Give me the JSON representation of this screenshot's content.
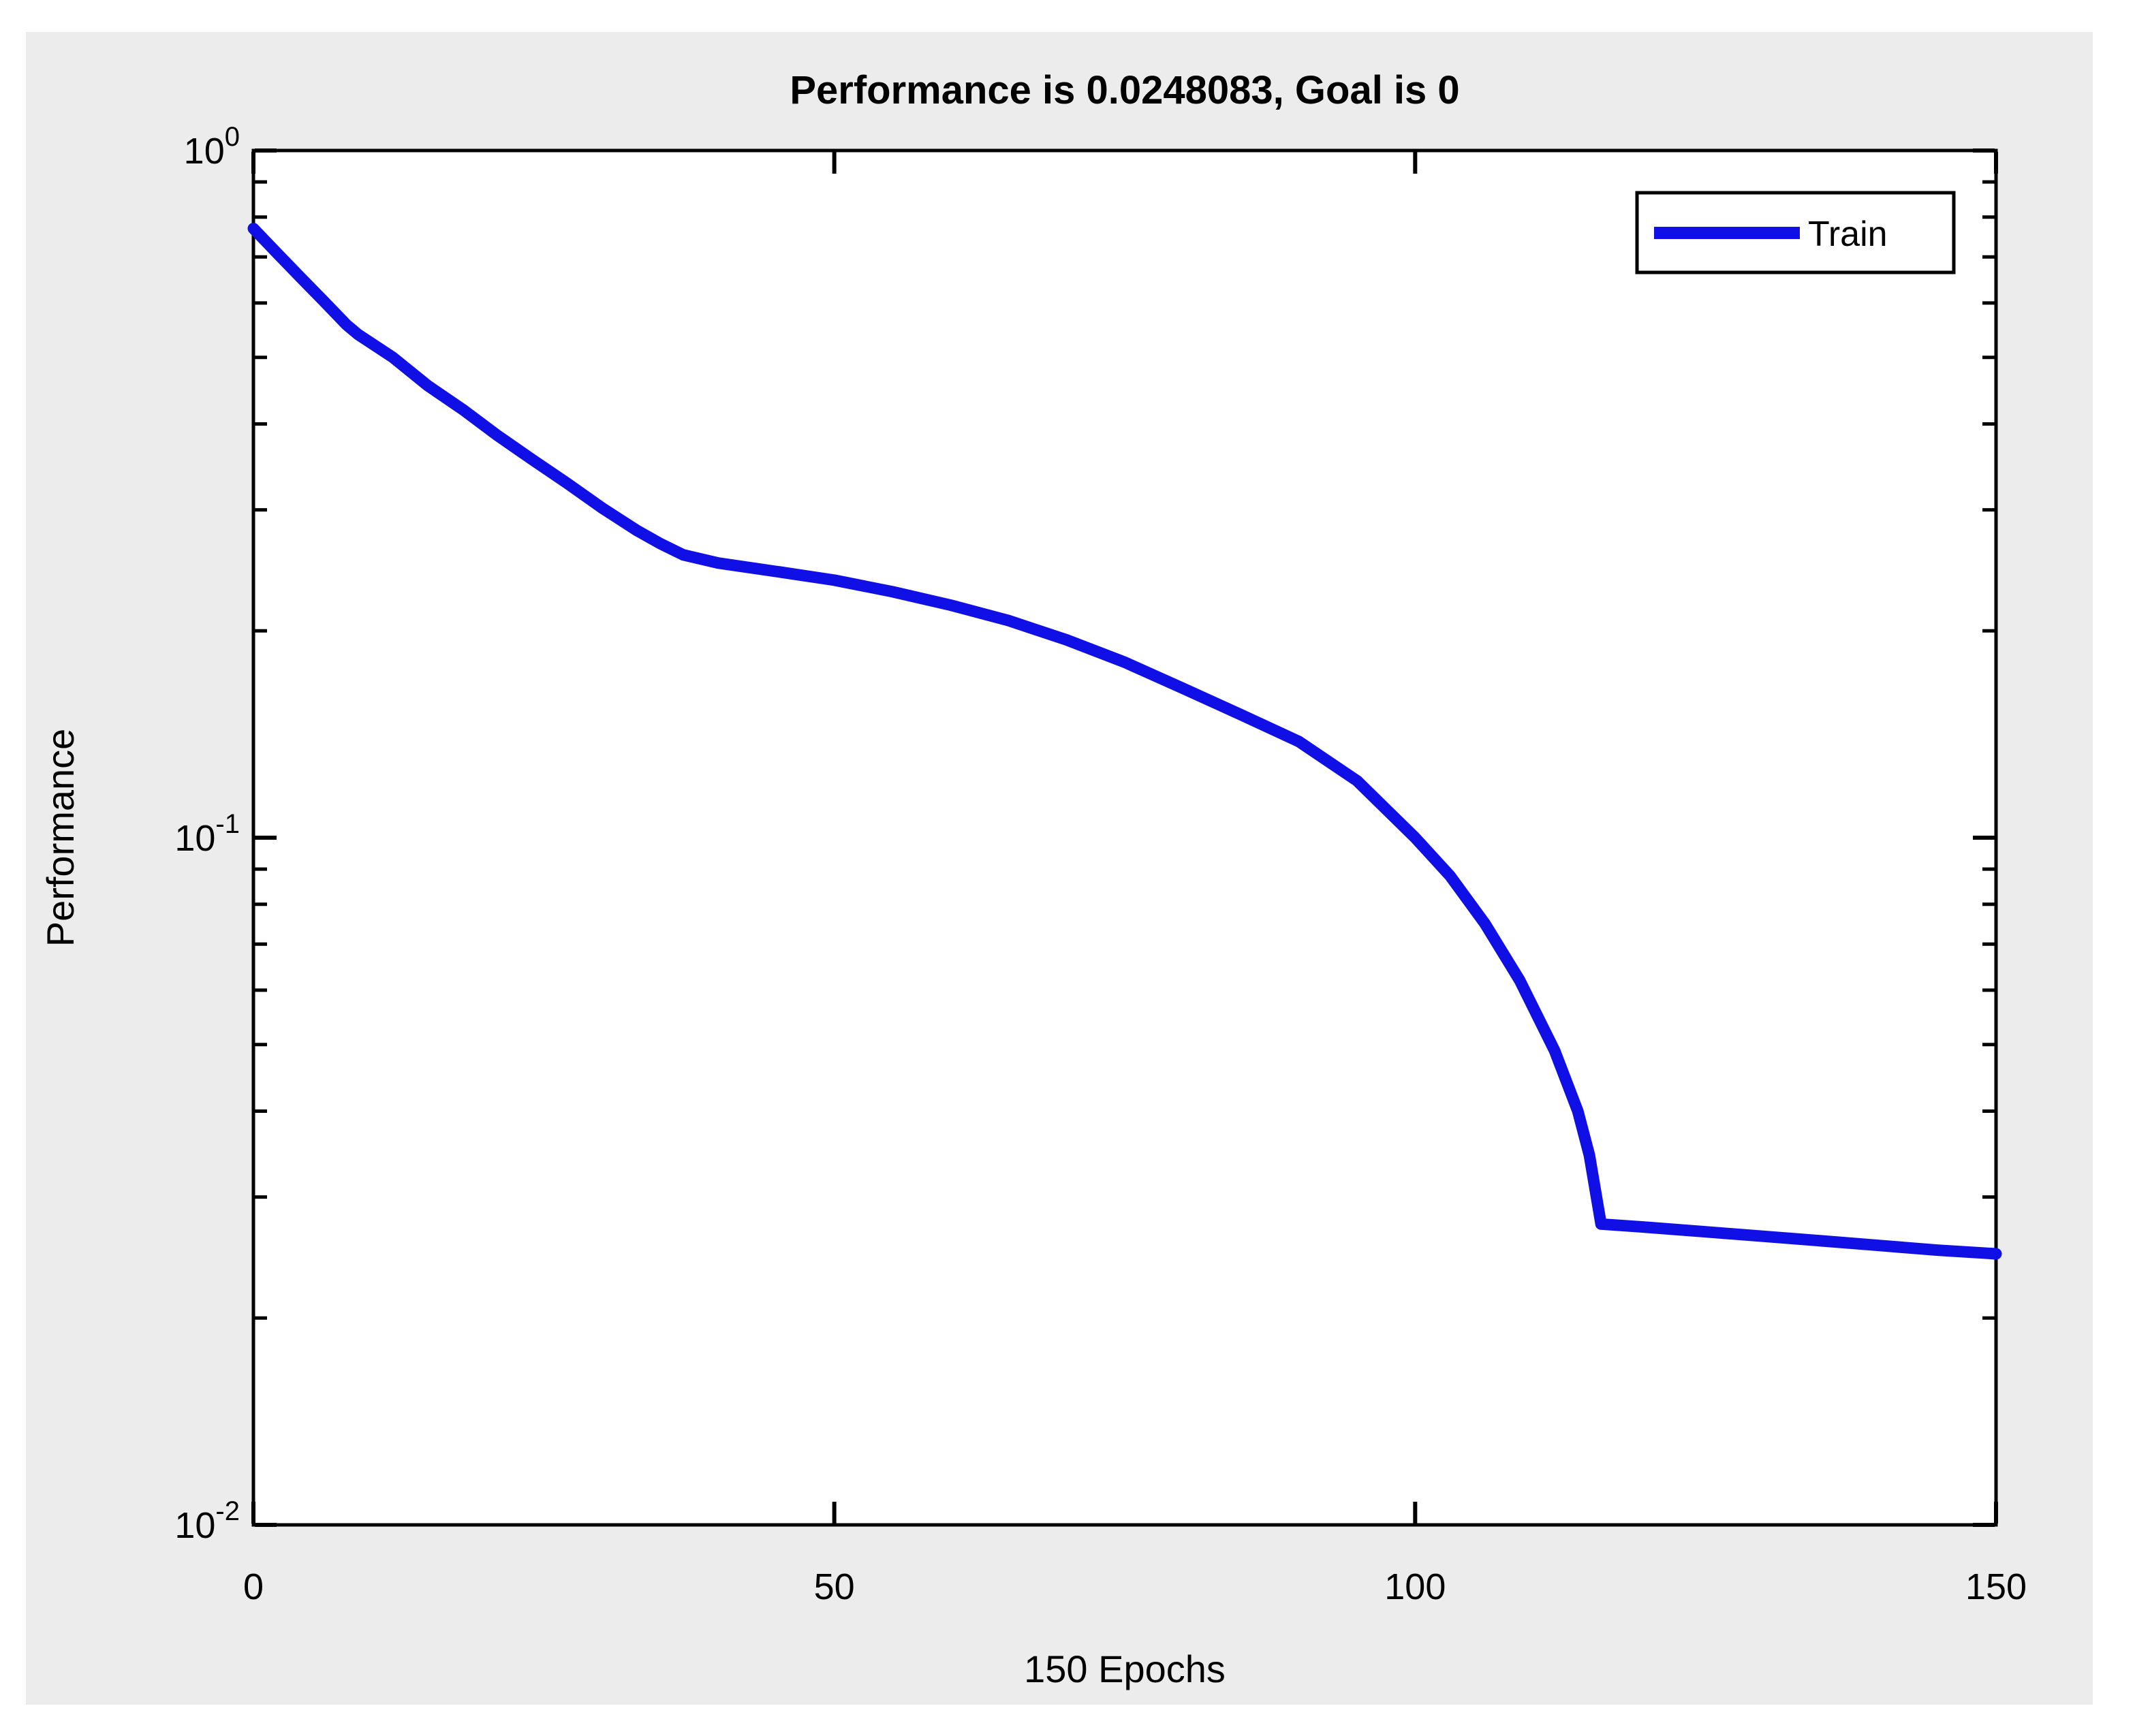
{
  "title": "Performance is 0.0248083, Goal is 0",
  "axes": {
    "xlabel": "150 Epochs",
    "ylabel": "Performance",
    "x_ticks": [
      {
        "value": 0,
        "label": "0"
      },
      {
        "value": 50,
        "label": "50"
      },
      {
        "value": 100,
        "label": "100"
      },
      {
        "value": 150,
        "label": "150"
      }
    ],
    "y_ticks": [
      {
        "value": 1,
        "base": "10",
        "exponent": "0"
      },
      {
        "value": 0.1,
        "base": "10",
        "exponent": "-1"
      },
      {
        "value": 0.01,
        "base": "10",
        "exponent": "-2"
      }
    ]
  },
  "legend": {
    "entries": [
      {
        "label": "Train",
        "color": "#0F0FE6"
      }
    ]
  },
  "colors": {
    "line": "#0F0FE6",
    "figure_background": "#ECECEC",
    "plot_background": "#FFFFFF",
    "axis": "#000000"
  },
  "chart_data": {
    "type": "line",
    "title": "Performance is 0.0248083, Goal is 0",
    "xlabel": "150 Epochs",
    "ylabel": "Performance",
    "xlim": [
      0,
      150
    ],
    "ylim": [
      0.01,
      1
    ],
    "yscale": "log",
    "grid": false,
    "legend_position": "upper right",
    "final_performance": 0.0248083,
    "goal": 0,
    "series": [
      {
        "name": "Train",
        "color": "#0F0FE6",
        "points": [
          [
            0,
            0.77
          ],
          [
            2,
            0.71
          ],
          [
            4,
            0.655
          ],
          [
            6,
            0.605
          ],
          [
            8,
            0.558
          ],
          [
            9,
            0.54
          ],
          [
            12,
            0.5
          ],
          [
            15,
            0.455
          ],
          [
            18,
            0.42
          ],
          [
            21,
            0.385
          ],
          [
            24,
            0.355
          ],
          [
            27,
            0.328
          ],
          [
            30,
            0.302
          ],
          [
            33,
            0.28
          ],
          [
            35,
            0.268
          ],
          [
            37,
            0.258
          ],
          [
            40,
            0.251
          ],
          [
            45,
            0.244
          ],
          [
            50,
            0.237
          ],
          [
            55,
            0.228
          ],
          [
            60,
            0.218
          ],
          [
            65,
            0.207
          ],
          [
            70,
            0.194
          ],
          [
            75,
            0.18
          ],
          [
            80,
            0.165
          ],
          [
            85,
            0.151
          ],
          [
            90,
            0.138
          ],
          [
            95,
            0.121
          ],
          [
            100,
            0.1
          ],
          [
            103,
            0.088
          ],
          [
            106,
            0.075
          ],
          [
            109,
            0.062
          ],
          [
            112,
            0.049
          ],
          [
            114,
            0.04
          ],
          [
            115,
            0.0345
          ],
          [
            116,
            0.0274
          ],
          [
            120,
            0.0271
          ],
          [
            125,
            0.0267
          ],
          [
            130,
            0.0263
          ],
          [
            135,
            0.0259
          ],
          [
            140,
            0.0255
          ],
          [
            145,
            0.0251
          ],
          [
            150,
            0.0248
          ]
        ]
      }
    ]
  }
}
